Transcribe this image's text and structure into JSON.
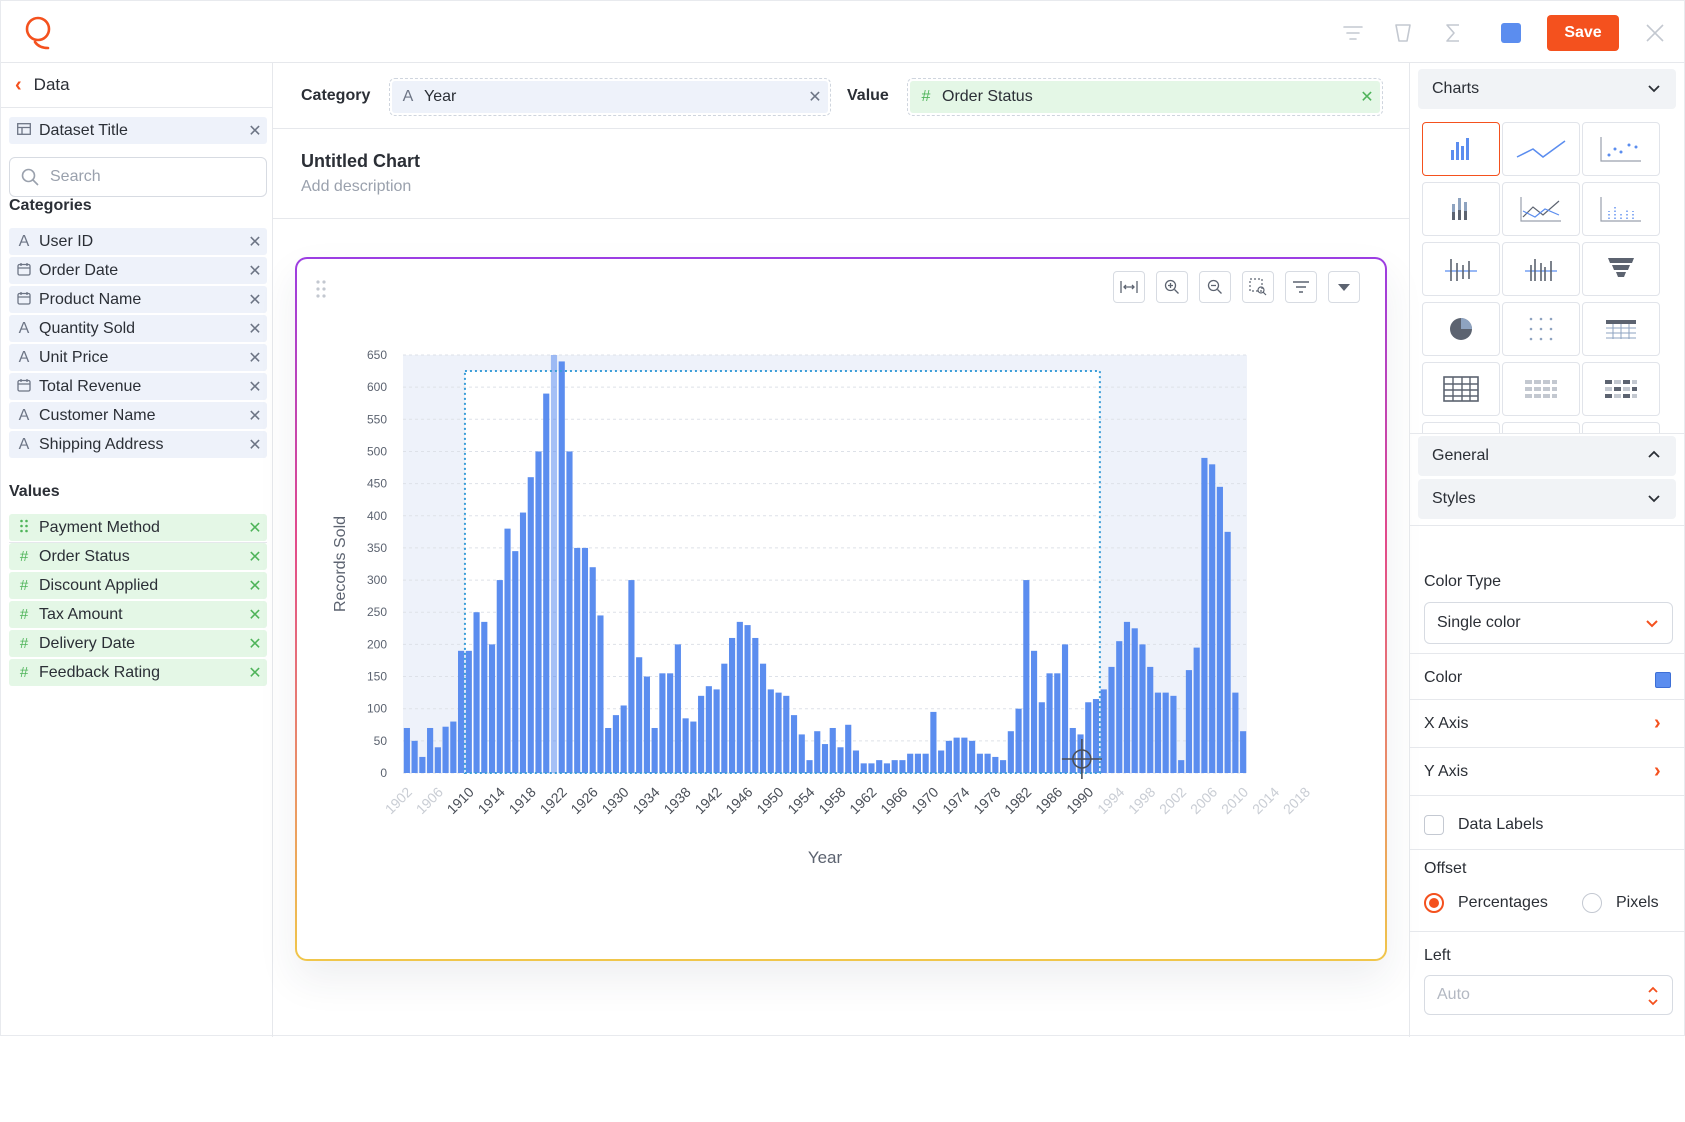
{
  "toolbar": {
    "save_label": "Save",
    "icons": [
      "filter-icon",
      "eraser-icon",
      "sigma-icon",
      "color-square-icon",
      "close-icon"
    ]
  },
  "left_panel": {
    "back_label": "Data",
    "dataset": {
      "label": "Dataset Title"
    },
    "search": {
      "placeholder": "Search"
    },
    "categories_title": "Categories",
    "categories": [
      {
        "label": "User ID",
        "icon": "text-icon"
      },
      {
        "label": "Order Date",
        "icon": "calendar-icon"
      },
      {
        "label": "Product Name",
        "icon": "calendar-icon"
      },
      {
        "label": "Quantity Sold",
        "icon": "text-icon"
      },
      {
        "label": "Unit Price",
        "icon": "text-icon"
      },
      {
        "label": "Total Revenue",
        "icon": "calendar-icon"
      },
      {
        "label": "Customer Name",
        "icon": "text-icon"
      },
      {
        "label": "Shipping Address",
        "icon": "text-icon"
      }
    ],
    "values_title": "Values",
    "values": [
      {
        "label": "Payment Method",
        "icon": "drag-icon"
      },
      {
        "label": "Order Status",
        "icon": "hash-icon"
      },
      {
        "label": "Discount Applied",
        "icon": "hash-icon"
      },
      {
        "label": "Tax Amount",
        "icon": "hash-icon"
      },
      {
        "label": "Delivery Date",
        "icon": "hash-icon"
      },
      {
        "label": "Feedback Rating",
        "icon": "hash-icon"
      }
    ]
  },
  "builder": {
    "category_label": "Category",
    "category_value": "Year",
    "value_label": "Value",
    "value_value": "Order Status",
    "chart_title": "Untitled Chart",
    "chart_description": "Add description"
  },
  "chart_data": {
    "type": "bar",
    "xlabel": "Year",
    "ylabel": "Records Sold",
    "ylim": [
      0,
      650
    ],
    "yticks": [
      0,
      50,
      100,
      150,
      200,
      250,
      300,
      350,
      400,
      450,
      500,
      550,
      600,
      650
    ],
    "x_start": 1902,
    "x_end": 2020,
    "xtick_step": 4,
    "selection_range": [
      1910,
      1991
    ],
    "bar_color": "#5b8def",
    "values": [
      70,
      50,
      25,
      70,
      40,
      72,
      80,
      190,
      190,
      250,
      235,
      200,
      300,
      380,
      345,
      405,
      460,
      500,
      590,
      650,
      640,
      500,
      350,
      350,
      320,
      245,
      70,
      90,
      105,
      300,
      180,
      150,
      70,
      155,
      155,
      200,
      85,
      80,
      120,
      135,
      130,
      170,
      210,
      235,
      230,
      210,
      170,
      130,
      125,
      120,
      90,
      60,
      20,
      65,
      45,
      70,
      40,
      75,
      35,
      15,
      15,
      20,
      15,
      20,
      20,
      30,
      30,
      30,
      95,
      35,
      50,
      55,
      55,
      50,
      30,
      30,
      25,
      20,
      65,
      100,
      300,
      190,
      110,
      155,
      155,
      200,
      70,
      60,
      110,
      115,
      130,
      165,
      205,
      235,
      225,
      200,
      165,
      125,
      125,
      120,
      20,
      160,
      195,
      490,
      480,
      445,
      375,
      125,
      65
    ]
  },
  "chart_tools": [
    "fit-width-icon",
    "zoom-in-icon",
    "zoom-out-icon",
    "select-area-icon",
    "filter-icon",
    "caret-down-icon"
  ],
  "right_panel": {
    "charts_label": "Charts",
    "general_label": "General",
    "styles_label": "Styles",
    "color_type_label": "Color Type",
    "color_type_value": "Single color",
    "color_label": "Color",
    "color_value": "#5b8def",
    "x_axis_label": "X Axis",
    "y_axis_label": "Y Axis",
    "data_labels_label": "Data Labels",
    "offset_label": "Offset",
    "offset_option_1": "Percentages",
    "offset_option_2": "Pixels",
    "left_label": "Left",
    "left_placeholder": "Auto"
  }
}
